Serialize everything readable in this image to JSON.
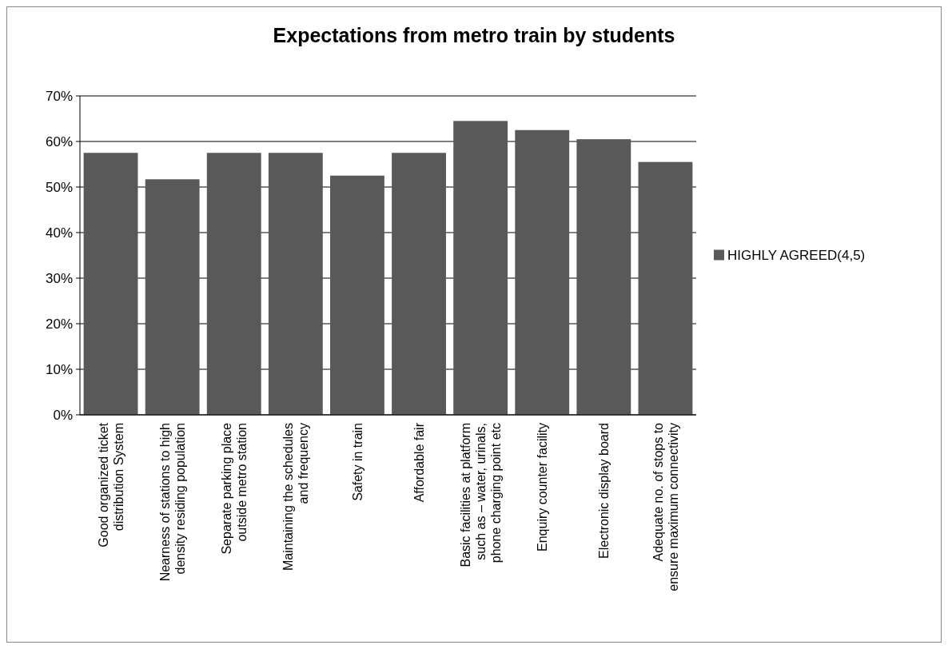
{
  "chart_data": {
    "type": "bar",
    "title": "Expectations from metro train by students",
    "categories": [
      "Good organized ticket distribution System",
      "Nearness of stations to high density  residing population",
      "Separate parking place outside metro station",
      "Maintaining the schedules and frequency",
      "Safety in  train",
      "Affordable fair",
      "Basic facilities at platform such as – water, urinals, phone charging point etc",
      "Enquiry counter facility",
      "Electronic display board",
      "Adequate no. of stops to ensure maximum connectivity"
    ],
    "series": [
      {
        "name": "HIGHLY AGREED(4,5)",
        "color": "#595959",
        "values": [
          57.5,
          51.7,
          57.5,
          57.5,
          52.5,
          57.5,
          64.5,
          62.5,
          60.5,
          55.5
        ]
      }
    ],
    "ylim": [
      0,
      70
    ],
    "yticks": [
      {
        "value": 0,
        "label": "0%"
      },
      {
        "value": 10,
        "label": "10%"
      },
      {
        "value": 20,
        "label": "20%"
      },
      {
        "value": 30,
        "label": "30%"
      },
      {
        "value": 40,
        "label": "40%"
      },
      {
        "value": 50,
        "label": "50%"
      },
      {
        "value": 60,
        "label": "60%"
      },
      {
        "value": 70,
        "label": "70%"
      }
    ],
    "grid": "y",
    "legend": "right"
  }
}
